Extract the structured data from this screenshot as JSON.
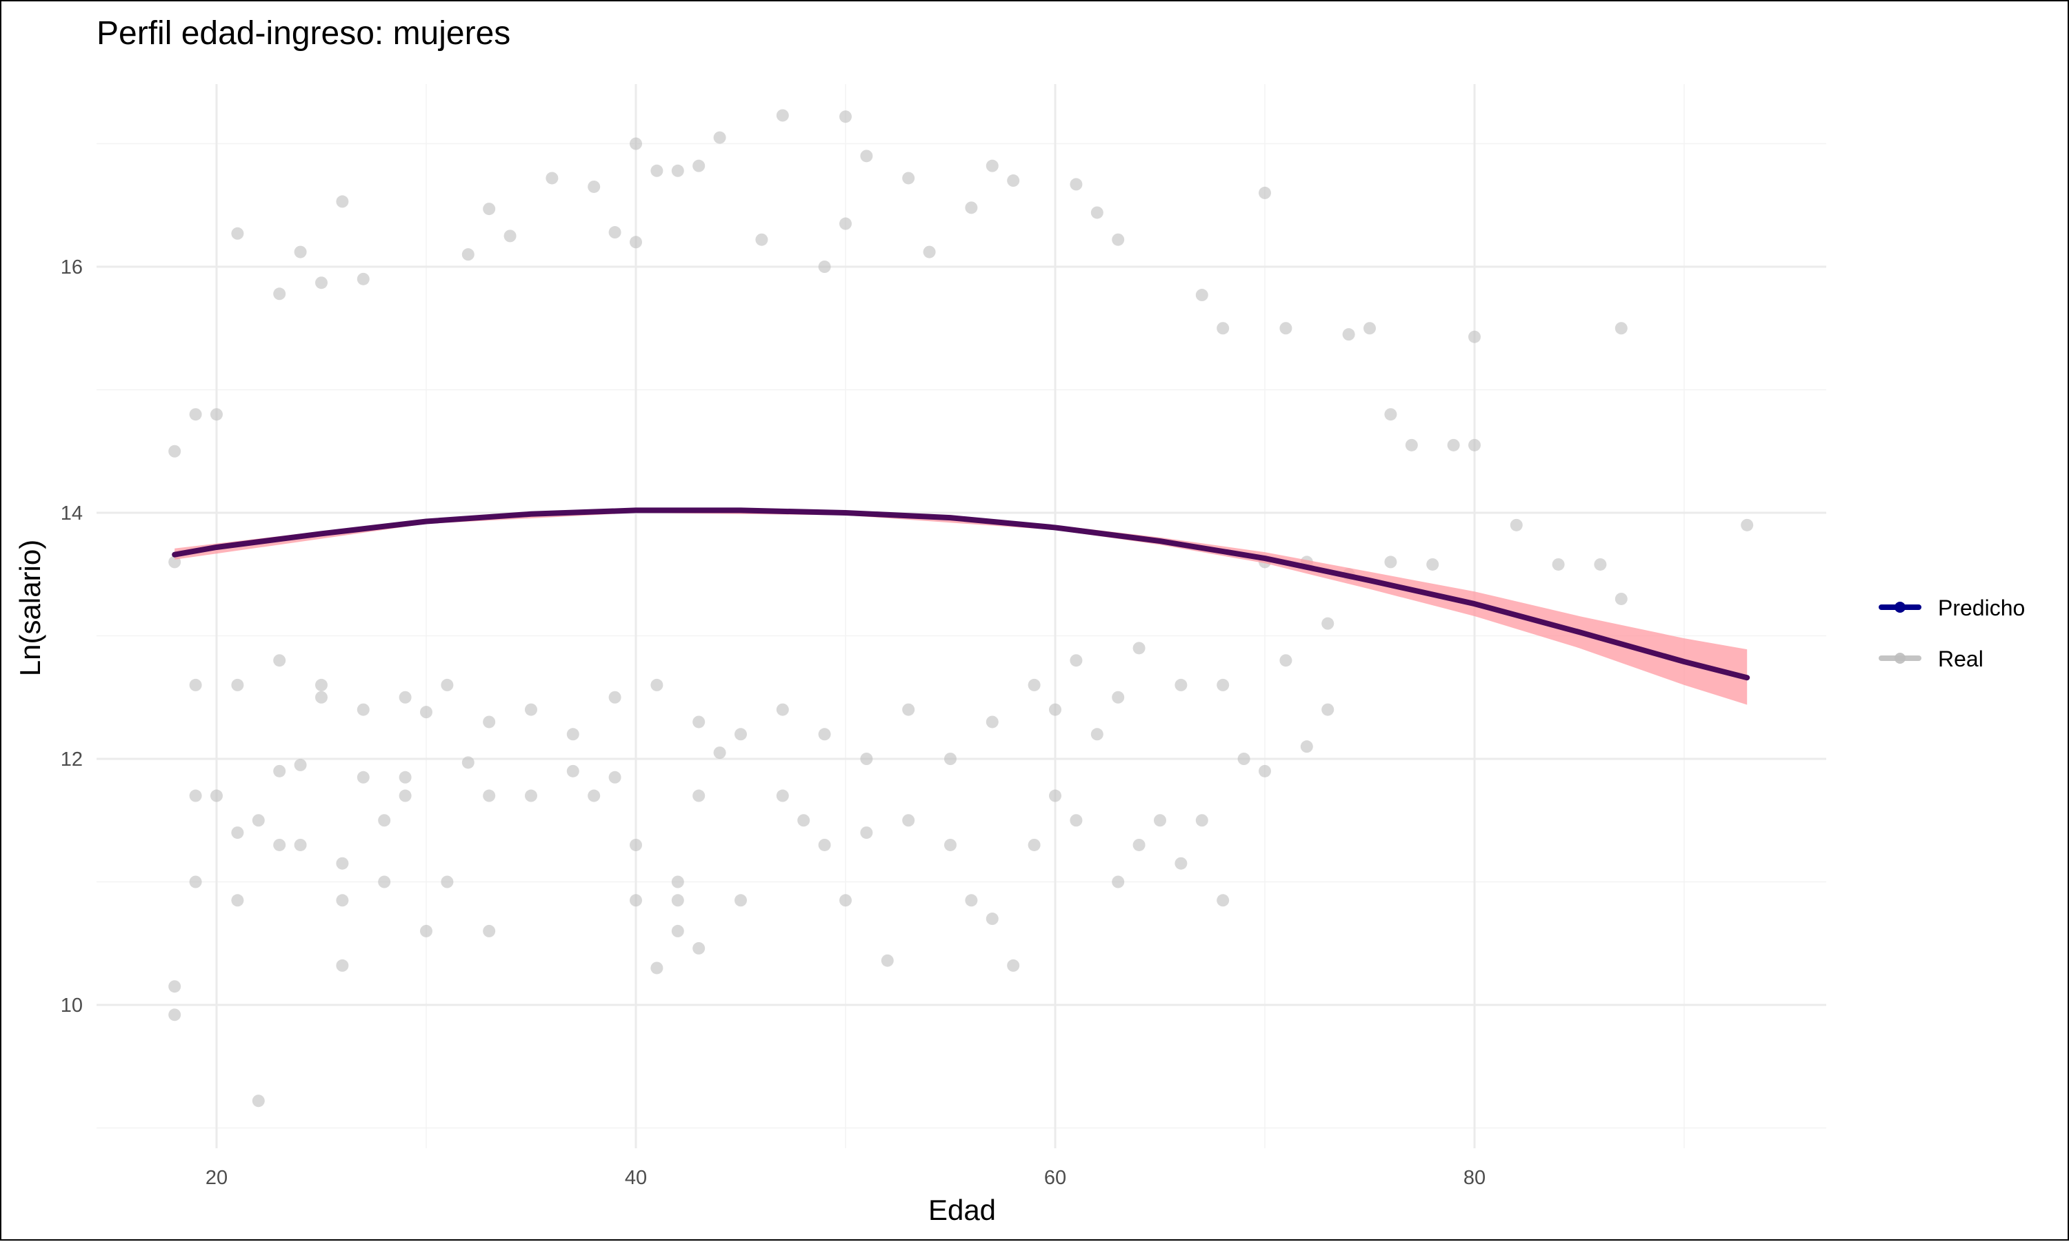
{
  "chart_data": {
    "type": "scatter",
    "title": "Perfil edad-ingreso: mujeres",
    "xlabel": "Edad",
    "ylabel": "Ln(salario)",
    "xlim": [
      14,
      97
    ],
    "ylim": [
      9,
      17.5
    ],
    "x_ticks": [
      20,
      40,
      60,
      80
    ],
    "y_ticks": [
      10,
      12,
      14,
      16
    ],
    "grid": true,
    "legend_position": "right",
    "colors": {
      "real": "#bebebe",
      "predicho": "#4b0a5a",
      "predicho_legend": "#00008b",
      "band": "#ff9aa2"
    },
    "series": [
      {
        "name": "Real",
        "kind": "points",
        "points": [
          [
            18,
            10.15
          ],
          [
            18,
            9.92
          ],
          [
            22,
            9.22
          ],
          [
            18,
            14.5
          ],
          [
            18,
            13.6
          ],
          [
            19,
            14.8
          ],
          [
            19,
            12.6
          ],
          [
            19,
            11.0
          ],
          [
            19,
            11.7
          ],
          [
            20,
            14.8
          ],
          [
            20,
            11.7
          ],
          [
            21,
            16.27
          ],
          [
            21,
            10.85
          ],
          [
            21,
            11.4
          ],
          [
            22,
            11.5
          ],
          [
            23,
            15.78
          ],
          [
            23,
            11.3
          ],
          [
            23,
            11.9
          ],
          [
            24,
            16.12
          ],
          [
            24,
            11.95
          ],
          [
            24,
            11.3
          ],
          [
            25,
            15.87
          ],
          [
            25,
            12.5
          ],
          [
            26,
            16.53
          ],
          [
            26,
            11.15
          ],
          [
            26,
            10.32
          ],
          [
            26,
            10.85
          ],
          [
            27,
            15.9
          ],
          [
            27,
            11.85
          ],
          [
            28,
            11.0
          ],
          [
            28,
            11.5
          ],
          [
            29,
            11.7
          ],
          [
            29,
            11.85
          ],
          [
            30,
            12.38
          ],
          [
            30,
            10.6
          ],
          [
            31,
            11.0
          ],
          [
            32,
            16.1
          ],
          [
            32,
            11.97
          ],
          [
            33,
            16.47
          ],
          [
            33,
            10.6
          ],
          [
            33,
            11.7
          ],
          [
            34,
            16.25
          ],
          [
            35,
            11.7
          ],
          [
            36,
            16.72
          ],
          [
            37,
            11.9
          ],
          [
            38,
            16.65
          ],
          [
            38,
            11.7
          ],
          [
            39,
            16.28
          ],
          [
            39,
            11.85
          ],
          [
            40,
            17.0
          ],
          [
            40,
            16.2
          ],
          [
            40,
            11.3
          ],
          [
            40,
            10.85
          ],
          [
            41,
            16.78
          ],
          [
            41,
            10.3
          ],
          [
            42,
            16.78
          ],
          [
            42,
            11.0
          ],
          [
            42,
            10.6
          ],
          [
            42,
            10.85
          ],
          [
            43,
            16.82
          ],
          [
            43,
            10.46
          ],
          [
            43,
            11.7
          ],
          [
            44,
            17.05
          ],
          [
            44,
            12.05
          ],
          [
            45,
            10.85
          ],
          [
            46,
            16.22
          ],
          [
            47,
            17.23
          ],
          [
            47,
            11.7
          ],
          [
            48,
            11.5
          ],
          [
            49,
            16.0
          ],
          [
            49,
            11.3
          ],
          [
            50,
            17.22
          ],
          [
            50,
            16.35
          ],
          [
            50,
            10.85
          ],
          [
            51,
            16.9
          ],
          [
            51,
            11.4
          ],
          [
            52,
            10.36
          ],
          [
            53,
            16.72
          ],
          [
            53,
            11.5
          ],
          [
            54,
            16.12
          ],
          [
            55,
            11.3
          ],
          [
            56,
            16.48
          ],
          [
            56,
            10.85
          ],
          [
            57,
            16.82
          ],
          [
            57,
            10.7
          ],
          [
            58,
            16.7
          ],
          [
            58,
            10.32
          ],
          [
            59,
            11.3
          ],
          [
            60,
            11.7
          ],
          [
            61,
            16.67
          ],
          [
            61,
            11.5
          ],
          [
            62,
            16.44
          ],
          [
            63,
            16.22
          ],
          [
            63,
            11.0
          ],
          [
            64,
            11.3
          ],
          [
            65,
            11.5
          ],
          [
            66,
            11.15
          ],
          [
            67,
            15.77
          ],
          [
            67,
            11.5
          ],
          [
            68,
            10.85
          ],
          [
            68,
            15.5
          ],
          [
            69,
            12.0
          ],
          [
            70,
            16.6
          ],
          [
            70,
            11.9
          ],
          [
            71,
            15.5
          ],
          [
            72,
            12.1
          ],
          [
            73,
            12.4
          ],
          [
            74,
            15.45
          ],
          [
            75,
            15.5
          ],
          [
            76,
            14.8
          ],
          [
            77,
            14.55
          ],
          [
            79,
            14.55
          ],
          [
            80,
            15.43
          ],
          [
            80,
            14.55
          ],
          [
            82,
            13.9
          ],
          [
            84,
            13.58
          ],
          [
            86,
            13.58
          ],
          [
            87,
            15.5
          ],
          [
            87,
            13.3
          ],
          [
            93,
            13.9
          ],
          [
            70,
            13.6
          ],
          [
            72,
            13.6
          ],
          [
            73,
            13.1
          ],
          [
            71,
            12.8
          ],
          [
            74,
            13.5
          ],
          [
            76,
            13.6
          ],
          [
            78,
            13.58
          ],
          [
            66,
            12.6
          ],
          [
            68,
            12.6
          ],
          [
            64,
            12.9
          ],
          [
            63,
            12.5
          ],
          [
            62,
            12.2
          ],
          [
            61,
            12.8
          ],
          [
            60,
            12.4
          ],
          [
            59,
            12.6
          ],
          [
            57,
            12.3
          ],
          [
            55,
            12.0
          ],
          [
            53,
            12.4
          ],
          [
            51,
            12.0
          ],
          [
            49,
            12.2
          ],
          [
            47,
            12.4
          ],
          [
            45,
            12.2
          ],
          [
            43,
            12.3
          ],
          [
            41,
            12.6
          ],
          [
            39,
            12.5
          ],
          [
            37,
            12.2
          ],
          [
            35,
            12.4
          ],
          [
            33,
            12.3
          ],
          [
            31,
            12.6
          ],
          [
            29,
            12.5
          ],
          [
            27,
            12.4
          ],
          [
            25,
            12.6
          ],
          [
            23,
            12.8
          ],
          [
            21,
            12.6
          ]
        ]
      },
      {
        "name": "Predicho",
        "kind": "line",
        "points": [
          [
            18,
            13.66
          ],
          [
            20,
            13.72
          ],
          [
            25,
            13.83
          ],
          [
            30,
            13.93
          ],
          [
            35,
            13.99
          ],
          [
            40,
            14.02
          ],
          [
            45,
            14.02
          ],
          [
            50,
            14.0
          ],
          [
            55,
            13.96
          ],
          [
            60,
            13.88
          ],
          [
            65,
            13.77
          ],
          [
            70,
            13.63
          ],
          [
            75,
            13.45
          ],
          [
            80,
            13.26
          ],
          [
            85,
            13.03
          ],
          [
            90,
            12.79
          ],
          [
            93,
            12.66
          ]
        ]
      }
    ],
    "confidence_band": {
      "x": [
        18,
        30,
        40,
        50,
        60,
        65,
        70,
        75,
        80,
        85,
        90,
        93
      ],
      "lower": [
        13.62,
        13.91,
        14.0,
        13.98,
        13.86,
        13.74,
        13.59,
        13.38,
        13.16,
        12.9,
        12.6,
        12.44
      ],
      "upper": [
        13.71,
        13.95,
        14.04,
        14.02,
        13.9,
        13.8,
        13.68,
        13.52,
        13.36,
        13.16,
        12.98,
        12.89
      ]
    },
    "legend": [
      {
        "label": "Predicho",
        "color": "#00008b"
      },
      {
        "label": "Real",
        "color": "#bebebe"
      }
    ]
  }
}
